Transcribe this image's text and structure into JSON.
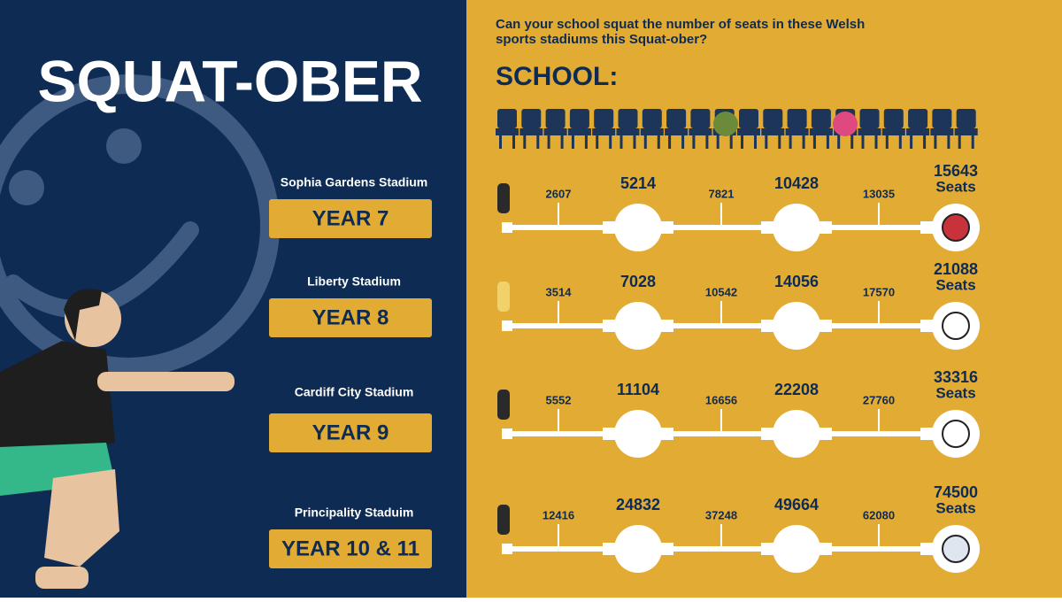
{
  "title": "SQUAT-OBER",
  "question": [
    "Can your school squat the number of seats in these Welsh",
    "sports stadiums this Squat-ober?"
  ],
  "school_label": "SCHOOL:",
  "rows": [
    {
      "stadium": "Sophia Gardens Stadium",
      "year": "YEAR 7",
      "milestones": [
        "2607",
        "5214",
        "7821",
        "10428",
        "13035",
        "15643"
      ],
      "seats_label": "Seats"
    },
    {
      "stadium": "Liberty Stadium",
      "year": "YEAR 8",
      "milestones": [
        "3514",
        "7028",
        "10542",
        "14056",
        "17570",
        "21088"
      ],
      "seats_label": "Seats"
    },
    {
      "stadium": "Cardiff City Stadium",
      "year": "YEAR 9",
      "milestones": [
        "5552",
        "11104",
        "16656",
        "22208",
        "27760",
        "33316"
      ],
      "seats_label": "Seats"
    },
    {
      "stadium": "Principality Staduim",
      "year": "YEAR 10 & 11",
      "milestones": [
        "12416",
        "24832",
        "37248",
        "49664",
        "62080",
        "74500"
      ],
      "seats_label": "Seats"
    }
  ]
}
